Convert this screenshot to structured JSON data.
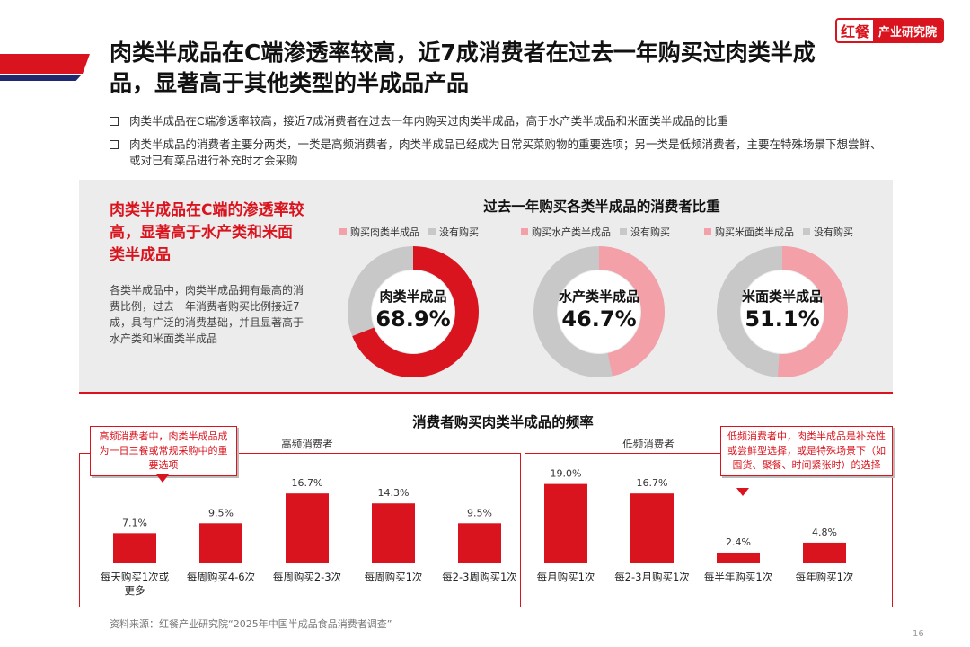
{
  "header": {
    "title": "肉类半成品在C端渗透率较高，近7成消费者在过去一年购买过肉类半成品，显著高于其他类型的半成品产品",
    "logo_mark": "红餐",
    "logo_text": "产业研究院"
  },
  "bullets": [
    "肉类半成品在C端渗透率较高，接近7成消费者在过去一年内购买过肉类半成品，高于水产类半成品和米面类半成品的比重",
    "肉类半成品的消费者主要分两类，一类是高频消费者，肉类半成品已经成为日常买菜购物的重要选项；另一类是低频消费者，主要在特殊场景下想尝鲜、或对已有菜品进行补充时才会采购"
  ],
  "left_panel": {
    "heading": "肉类半成品在C端的渗透率较高，显著高于水产类和米面类半成品",
    "body": "各类半成品中，肉类半成品拥有最高的消费比例，过去一年消费者购买比例接近7成，具有广泛的消费基础，并且显著高于水产类和米面类半成品"
  },
  "colors": {
    "red": "#d9141e",
    "pink": "#f4a0a8",
    "gray": "#c8c8c8",
    "navy": "#1f2a6e"
  },
  "chart_data": [
    {
      "type": "pie",
      "title": "过去一年购买各类半成品的消费者比重",
      "donuts": [
        {
          "name": "肉类半成品",
          "value": 68.9,
          "value_label": "68.9%",
          "legend": [
            "购买肉类半成品",
            "没有购买"
          ],
          "color": "#d9141e"
        },
        {
          "name": "水产类半成品",
          "value": 46.7,
          "value_label": "46.7%",
          "legend": [
            "购买水产类半成品",
            "没有购买"
          ],
          "color": "#f4a0a8"
        },
        {
          "name": "米面类半成品",
          "value": 51.1,
          "value_label": "51.1%",
          "legend": [
            "购买米面类半成品",
            "没有购买"
          ],
          "color": "#f4a0a8"
        }
      ]
    },
    {
      "type": "bar",
      "title": "消费者购买肉类半成品的频率",
      "groups": [
        {
          "name": "高频消费者",
          "callout": "高频消费者中，肉类半成品成为一日三餐或常规采购中的重要选项",
          "categories": [
            "每天购买1次或更多",
            "每周购买4-6次",
            "每周购买2-3次",
            "每周购买1次",
            "每2-3周购买1次"
          ],
          "category_lines": [
            [
              "每天购买1次或",
              "更多"
            ],
            [
              "每周购买4-6次"
            ],
            [
              "每周购买2-3次"
            ],
            [
              "每周购买1次"
            ],
            [
              "每2-3周购买1次"
            ]
          ],
          "values": [
            7.1,
            9.5,
            16.7,
            14.3,
            9.5
          ],
          "labels": [
            "7.1%",
            "9.5%",
            "16.7%",
            "14.3%",
            "9.5%"
          ]
        },
        {
          "name": "低频消费者",
          "callout": "低频消费者中，肉类半成品是补充性或尝鲜型选择，或是特殊场景下（如囤货、聚餐、时间紧张时）的选择",
          "categories": [
            "每月购买1次",
            "每2-3月购买1次",
            "每半年购买1次",
            "每年购买1次"
          ],
          "category_lines": [
            [
              "每月购买1次"
            ],
            [
              "每2-3月购买1次"
            ],
            [
              "每半年购买1次"
            ],
            [
              "每年购买1次"
            ]
          ],
          "values": [
            19.0,
            16.7,
            2.4,
            4.8
          ],
          "labels": [
            "19.0%",
            "16.7%",
            "2.4%",
            "4.8%"
          ]
        }
      ]
    }
  ],
  "footer": {
    "source": "资料来源：红餐产业研究院“2025年中国半成品食品消费者调查”",
    "page": "16"
  }
}
